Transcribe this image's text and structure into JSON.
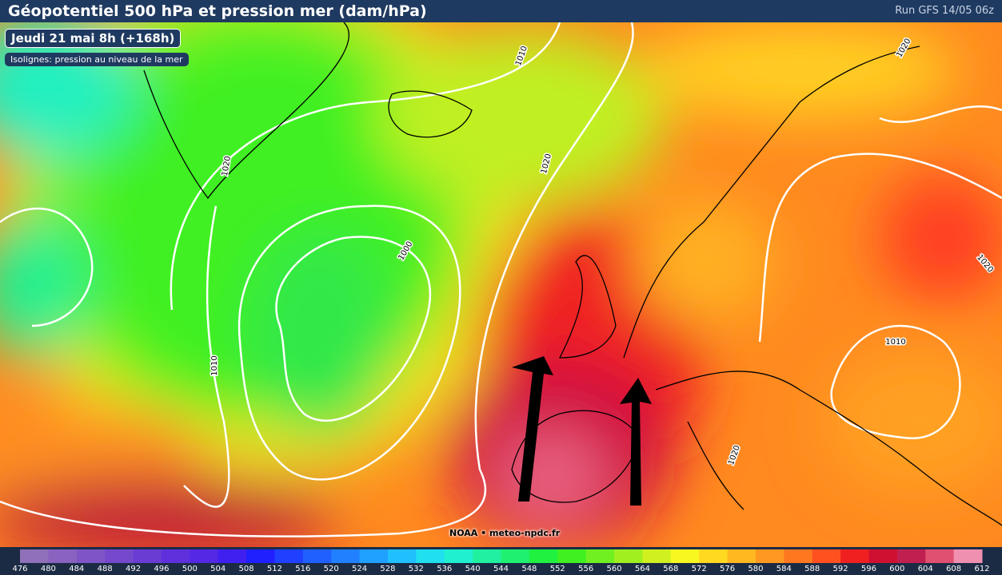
{
  "header": {
    "title": "Géopotentiel 500 hPa et pression mer (dam/hPa)",
    "run": "Run GFS 14/05 06z"
  },
  "badges": {
    "date": "Jeudi 21 mai 8h (+168h)",
    "isolines": "Isolignes: pression au niveau de la mer"
  },
  "isoline_labels": [
    "1010",
    "1020",
    "1020",
    "1020",
    "1000",
    "1010",
    "1020",
    "1010",
    "1020"
  ],
  "credit": "NOAA • meteo-npdc.fr",
  "scale": {
    "ticks": [
      476,
      480,
      484,
      488,
      492,
      496,
      500,
      504,
      508,
      512,
      516,
      520,
      524,
      528,
      532,
      536,
      540,
      544,
      548,
      552,
      556,
      560,
      564,
      568,
      572,
      576,
      580,
      584,
      588,
      592,
      596,
      600,
      604,
      608,
      612
    ],
    "colors": [
      "#9070b8",
      "#8a62c0",
      "#7f55c6",
      "#7548cc",
      "#6a3cd4",
      "#5f30dc",
      "#5428e4",
      "#4020f0",
      "#2020ff",
      "#2040ff",
      "#2060ff",
      "#2080ff",
      "#20a0ff",
      "#20c0ff",
      "#20e0f0",
      "#20f0d0",
      "#20f0a0",
      "#20f070",
      "#20f040",
      "#40f020",
      "#70f020",
      "#a0f020",
      "#d0f020",
      "#f8f820",
      "#ffd820",
      "#ffb820",
      "#ff9820",
      "#ff7820",
      "#ff5020",
      "#f02020",
      "#d01030",
      "#c02050",
      "#e05070",
      "#f090b0"
    ]
  }
}
